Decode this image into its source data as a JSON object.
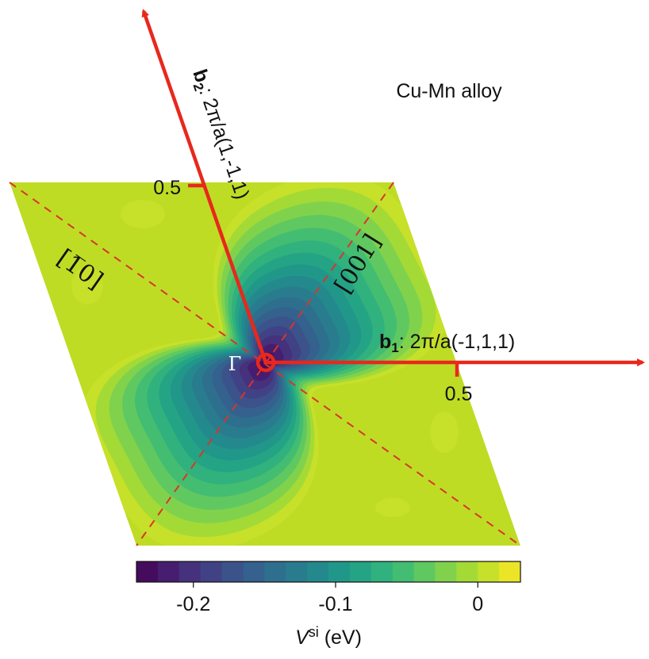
{
  "title": "Cu-Mn alloy",
  "gamma_label": "Γ",
  "axes": {
    "b1": {
      "bold": "b",
      "sub": "1",
      "text": ": 2π/a(-1,1,1)",
      "tick_label": "0.5"
    },
    "b2": {
      "bold": "b",
      "sub": "2",
      "text": ": 2π/a(1,-1,1)",
      "tick_label": "0.5"
    }
  },
  "directions": [
    "[1̅0]",
    "[001]"
  ],
  "colorbar": {
    "label_var": "V",
    "label_sup": "si",
    "label_unit": " (eV)",
    "ticks": [
      {
        "value": -0.2,
        "label": "-0.2"
      },
      {
        "value": -0.1,
        "label": "-0.1"
      },
      {
        "value": 0,
        "label": "0"
      }
    ],
    "range": [
      -0.24,
      0.03
    ],
    "levels": 18
  },
  "colors": {
    "arrow": "#e8281c",
    "dashed": "#d9352a",
    "background_level": "#bfdc25"
  },
  "chart_data": {
    "type": "heatmap",
    "title": "Cu-Mn alloy",
    "xlabel": "b1: 2π/a(-1,1,1)",
    "ylabel": "b2: 2π/a(1,-1,1)",
    "colorbar_label": "Vsi (eV)",
    "colorbar_range": [
      -0.24,
      0.03
    ],
    "colormap": "viridis",
    "minimum": {
      "x": 0.0,
      "y": 0.0,
      "value": -0.24
    },
    "background_value": 0.02,
    "domain": {
      "x": [
        -0.5,
        0.5
      ],
      "y": [
        -0.5,
        0.5
      ]
    }
  }
}
